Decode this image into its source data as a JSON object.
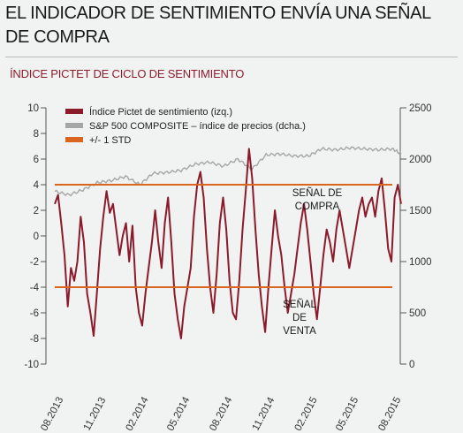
{
  "headline": {
    "line1": "EL INDICADOR DE SENTIMIENTO ENVÍA UNA SEÑAL",
    "line2": "DE COMPRA"
  },
  "colors": {
    "sentiment": "#8b1a2b",
    "sp500": "#a6a6a6",
    "std": "#d9651f",
    "subtitle": "#8b1d2c",
    "background": "#f1f2f2"
  },
  "chart_data": {
    "type": "line",
    "title": "ÍNDICE PICTET DE CICLO DE SENTIMIENTO",
    "xlabel": "",
    "ylabel": "",
    "x_ticks": [
      "08.2013",
      "11.2013",
      "02.2014",
      "05.2014",
      "08.2014",
      "11.2014",
      "02.2015",
      "05.2015",
      "08.2015"
    ],
    "ylim_left": [
      -10,
      10
    ],
    "yticks_left": [
      "10",
      "8",
      "6",
      "4",
      "2",
      "0",
      "-2",
      "-4",
      "-6",
      "-8",
      "-10"
    ],
    "ylim_right": [
      0,
      2500
    ],
    "yticks_right": [
      "2500",
      "2000",
      "1500",
      "1000",
      "500",
      "0"
    ],
    "grid": false,
    "legend_position": "top-left",
    "std_band": [
      -4,
      4
    ],
    "series": [
      {
        "name": "Índice Pictet de sentimiento (izq.)",
        "axis": "left",
        "x": [
          "2013-08-01",
          "2013-08-08",
          "2013-08-15",
          "2013-08-22",
          "2013-08-29",
          "2013-09-05",
          "2013-09-12",
          "2013-09-19",
          "2013-09-26",
          "2013-10-03",
          "2013-10-10",
          "2013-10-17",
          "2013-10-24",
          "2013-10-31",
          "2013-11-07",
          "2013-11-14",
          "2013-11-21",
          "2013-11-28",
          "2013-12-05",
          "2013-12-12",
          "2013-12-19",
          "2013-12-26",
          "2014-01-02",
          "2014-01-09",
          "2014-01-16",
          "2014-01-23",
          "2014-01-30",
          "2014-02-06",
          "2014-02-13",
          "2014-02-20",
          "2014-02-27",
          "2014-03-06",
          "2014-03-13",
          "2014-03-20",
          "2014-03-27",
          "2014-04-03",
          "2014-04-10",
          "2014-04-17",
          "2014-04-24",
          "2014-05-01",
          "2014-05-08",
          "2014-05-15",
          "2014-05-22",
          "2014-05-29",
          "2014-06-05",
          "2014-06-12",
          "2014-06-19",
          "2014-06-26",
          "2014-07-03",
          "2014-07-10",
          "2014-07-17",
          "2014-07-24",
          "2014-07-31",
          "2014-08-07",
          "2014-08-14",
          "2014-08-21",
          "2014-08-28",
          "2014-09-04",
          "2014-09-11",
          "2014-09-18",
          "2014-09-25",
          "2014-10-02",
          "2014-10-09",
          "2014-10-16",
          "2014-10-23",
          "2014-10-30",
          "2014-11-06",
          "2014-11-13",
          "2014-11-20",
          "2014-11-27",
          "2014-12-04",
          "2014-12-11",
          "2014-12-18",
          "2014-12-25",
          "2015-01-01",
          "2015-01-08",
          "2015-01-15",
          "2015-01-22",
          "2015-01-29",
          "2015-02-05",
          "2015-02-12",
          "2015-02-19",
          "2015-02-26",
          "2015-03-05",
          "2015-03-12",
          "2015-03-19",
          "2015-03-26",
          "2015-04-02",
          "2015-04-09",
          "2015-04-16",
          "2015-04-23",
          "2015-04-30",
          "2015-05-07",
          "2015-05-14",
          "2015-05-21",
          "2015-05-28",
          "2015-06-04",
          "2015-06-11",
          "2015-06-18",
          "2015-06-25",
          "2015-07-02",
          "2015-07-09",
          "2015-07-16",
          "2015-07-23",
          "2015-07-30",
          "2015-08-06",
          "2015-08-13",
          "2015-08-20"
        ],
        "values": [
          2.5,
          3.2,
          1.0,
          -1.5,
          -5.5,
          -2.5,
          -3.5,
          -2.0,
          1.5,
          -0.5,
          -4.5,
          -6.0,
          -7.8,
          -4.5,
          -1.0,
          1.5,
          3.5,
          1.8,
          2.5,
          0.5,
          -1.5,
          0.0,
          1.0,
          -2.0,
          0.8,
          -4.0,
          -6.0,
          -7.0,
          -4.5,
          -2.5,
          -0.5,
          2.0,
          -0.5,
          -2.5,
          1.0,
          3.0,
          -0.5,
          -4.5,
          -6.5,
          -8.0,
          -5.5,
          -4.0,
          -2.5,
          1.5,
          4.0,
          5.0,
          3.0,
          -1.0,
          -4.0,
          -6.0,
          -3.0,
          1.0,
          3.0,
          0.5,
          -3.5,
          -6.0,
          -6.5,
          -3.5,
          0.5,
          3.5,
          6.8,
          4.5,
          0.5,
          -3.0,
          -5.5,
          -7.5,
          -4.0,
          -1.0,
          2.0,
          0.0,
          -1.5,
          -4.0,
          -6.0,
          -4.5,
          -3.0,
          -1.0,
          1.0,
          2.5,
          0.5,
          -2.0,
          -4.5,
          -6.5,
          -4.0,
          -1.5,
          0.5,
          -0.5,
          -2.0,
          0.5,
          2.0,
          0.5,
          -1.0,
          -2.5,
          -1.0,
          0.5,
          2.0,
          3.0,
          1.5,
          2.5,
          3.0,
          1.5,
          3.5,
          4.5,
          2.0,
          -1.0,
          -2.0,
          3.0,
          4.0,
          2.5
        ]
      },
      {
        "name": "S&P 500 COMPOSITE – índice de precios (dcha.)",
        "axis": "right",
        "x": [
          "2013-08-01",
          "2013-09-01",
          "2013-10-01",
          "2013-11-01",
          "2013-12-01",
          "2014-01-01",
          "2014-02-01",
          "2014-03-01",
          "2014-04-01",
          "2014-05-01",
          "2014-06-01",
          "2014-07-01",
          "2014-08-01",
          "2014-09-01",
          "2014-10-01",
          "2014-11-01",
          "2014-12-01",
          "2015-01-01",
          "2015-02-01",
          "2015-03-01",
          "2015-04-01",
          "2015-05-01",
          "2015-06-01",
          "2015-07-01",
          "2015-08-01",
          "2015-08-20"
        ],
        "values": [
          1685,
          1650,
          1700,
          1770,
          1790,
          1830,
          1750,
          1860,
          1870,
          1890,
          1950,
          1970,
          1930,
          2000,
          1900,
          2040,
          2050,
          2030,
          2030,
          2100,
          2090,
          2110,
          2100,
          2090,
          2100,
          2050
        ]
      },
      {
        "name": "+/- 1 STD",
        "axis": "left",
        "values": [
          4,
          -4
        ]
      }
    ],
    "annotations": [
      {
        "lines": [
          "SEÑAL DE",
          "COMPRA"
        ]
      },
      {
        "lines": [
          "SEÑAL",
          "DE",
          "VENTA"
        ]
      }
    ]
  }
}
